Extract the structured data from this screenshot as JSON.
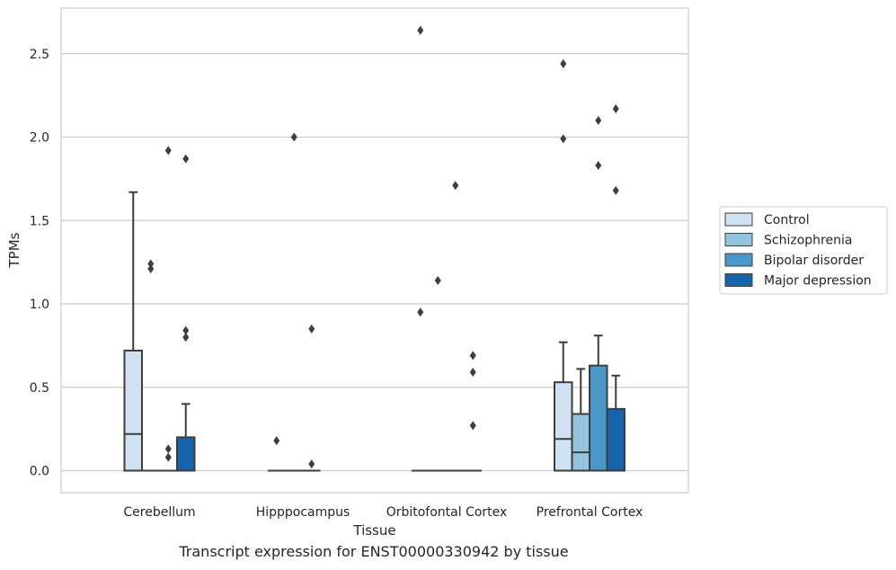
{
  "caption": "Transcript expression for ENST00000330942 by tissue",
  "chart_data": {
    "type": "box",
    "xlabel": "Tissue",
    "ylabel": "TPMs",
    "ylim": [
      -0.13,
      2.78
    ],
    "yticks": [
      0.0,
      0.5,
      1.0,
      1.5,
      2.0,
      2.5
    ],
    "ytick_labels": [
      "0.0",
      "0.5",
      "1.0",
      "1.5",
      "2.0",
      "2.5"
    ],
    "grid": "horizontal",
    "legend_position": "right",
    "categories": [
      "Cerebellum",
      "Hipppocampus",
      "Orbitofontal Cortex",
      "Prefrontal Cortex"
    ],
    "series": [
      {
        "name": "Control",
        "color": "#d0e1f2",
        "boxes": [
          {
            "q1": 0.0,
            "median": 0.22,
            "q3": 0.72,
            "whisker_low": 0.0,
            "whisker_high": 1.67,
            "outliers": []
          },
          {
            "q1": 0.0,
            "median": 0.0,
            "q3": 0.0,
            "whisker_low": 0.0,
            "whisker_high": 0.0,
            "outliers": [
              0.18
            ]
          },
          {
            "q1": 0.0,
            "median": 0.0,
            "q3": 0.0,
            "whisker_low": 0.0,
            "whisker_high": 0.0,
            "outliers": [
              0.95,
              2.64
            ]
          },
          {
            "q1": 0.0,
            "median": 0.19,
            "q3": 0.53,
            "whisker_low": 0.0,
            "whisker_high": 0.77,
            "outliers": [
              1.99,
              2.44
            ]
          }
        ]
      },
      {
        "name": "Schizophrenia",
        "color": "#94c4df",
        "boxes": [
          {
            "q1": 0.0,
            "median": 0.0,
            "q3": 0.0,
            "whisker_low": 0.0,
            "whisker_high": 0.0,
            "outliers": [
              1.21,
              1.24
            ]
          },
          {
            "q1": 0.0,
            "median": 0.0,
            "q3": 0.0,
            "whisker_low": 0.0,
            "whisker_high": 0.0,
            "outliers": [
              2.0
            ]
          },
          {
            "q1": 0.0,
            "median": 0.0,
            "q3": 0.0,
            "whisker_low": 0.0,
            "whisker_high": 0.0,
            "outliers": [
              1.14
            ]
          },
          {
            "q1": 0.0,
            "median": 0.11,
            "q3": 0.34,
            "whisker_low": 0.0,
            "whisker_high": 0.61,
            "outliers": []
          }
        ]
      },
      {
        "name": "Bipolar disorder",
        "color": "#4a98c9",
        "boxes": [
          {
            "q1": 0.0,
            "median": 0.0,
            "q3": 0.0,
            "whisker_low": 0.0,
            "whisker_high": 0.0,
            "outliers": [
              0.08,
              0.13,
              1.92
            ]
          },
          {
            "q1": 0.0,
            "median": 0.0,
            "q3": 0.0,
            "whisker_low": 0.0,
            "whisker_high": 0.0,
            "outliers": [
              0.04,
              0.85
            ]
          },
          {
            "q1": 0.0,
            "median": 0.0,
            "q3": 0.0,
            "whisker_low": 0.0,
            "whisker_high": 0.0,
            "outliers": [
              1.71
            ]
          },
          {
            "q1": 0.0,
            "median": 0.0,
            "q3": 0.63,
            "whisker_low": 0.0,
            "whisker_high": 0.81,
            "outliers": [
              1.83,
              2.1
            ]
          }
        ]
      },
      {
        "name": "Major depression",
        "color": "#1764ab",
        "boxes": [
          {
            "q1": 0.0,
            "median": 0.0,
            "q3": 0.2,
            "whisker_low": 0.0,
            "whisker_high": 0.4,
            "outliers": [
              0.8,
              0.84,
              1.87
            ]
          },
          null,
          {
            "q1": 0.0,
            "median": 0.0,
            "q3": 0.0,
            "whisker_low": 0.0,
            "whisker_high": 0.0,
            "outliers": [
              0.27,
              0.59,
              0.69
            ]
          },
          {
            "q1": 0.0,
            "median": 0.0,
            "q3": 0.37,
            "whisker_low": 0.0,
            "whisker_high": 0.57,
            "outliers": [
              1.68,
              2.17
            ]
          }
        ]
      }
    ]
  }
}
